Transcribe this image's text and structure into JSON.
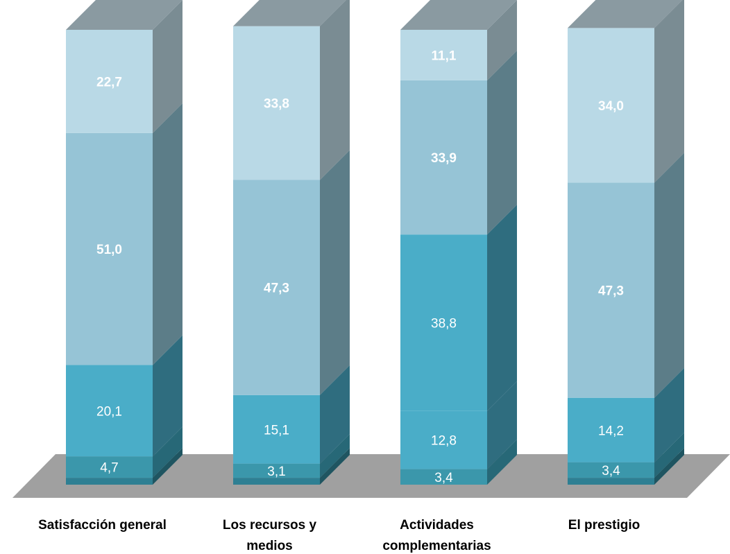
{
  "chart_data": {
    "type": "bar",
    "stacked": true,
    "three_d": true,
    "categories": [
      [
        "Satisfacción  general"
      ],
      [
        "Los recursos y",
        "medios"
      ],
      [
        "Actividades",
        "complementarias"
      ],
      [
        "El prestigio"
      ]
    ],
    "series": [
      {
        "values": [
          1.5,
          1.5,
          0.0,
          1.5
        ],
        "show_labels": false
      },
      {
        "values": [
          4.7,
          3.1,
          3.4,
          3.4
        ],
        "show_labels": true
      },
      {
        "values": [
          20.1,
          15.1,
          12.8,
          14.2
        ],
        "show_labels": true
      },
      {
        "values": [
          0.0,
          0.0,
          38.8,
          0.0
        ],
        "show_labels": true
      },
      {
        "values": [
          51.0,
          47.3,
          33.9,
          47.3
        ],
        "show_labels": true
      },
      {
        "values": [
          22.7,
          33.8,
          11.1,
          34.0
        ],
        "show_labels": true
      }
    ],
    "ylim": [
      0,
      100
    ],
    "grid": false,
    "legend": "none"
  },
  "style": {
    "label_series_3_cat_2": [
      "#3a92a6"
    ],
    "floor_color": "#a0a0a0",
    "front_colors": [
      "#2e7f93",
      "#3b97ab",
      "#4aadc8",
      "#4aadc8",
      "#96c4d6",
      "#b9d9e6"
    ],
    "side_colors": [
      "#1f5561",
      "#276877",
      "#2f6d7f",
      "#2f6d7f",
      "#5c7d88",
      "#7a8c93"
    ],
    "top_color": "#8a9aa1"
  }
}
